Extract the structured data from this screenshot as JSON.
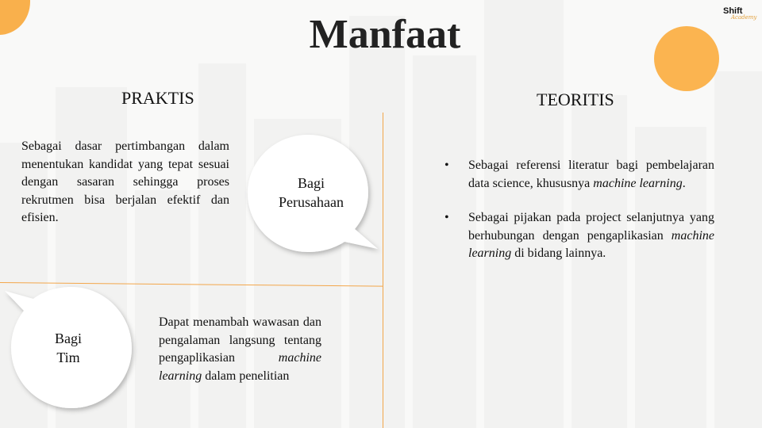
{
  "slide": {
    "title": "Manfaat",
    "logo": {
      "top": "Shift",
      "sub": "Academy"
    },
    "colors": {
      "accent": "#f9b04c",
      "line": "#f3a64a"
    }
  },
  "praktis": {
    "heading": "PRAKTIS",
    "perusahaan": {
      "bubble_line1": "Bagi",
      "bubble_line2": "Perusahaan",
      "text": "Sebagai dasar pertimbangan dalam menentukan kandidat yang tepat sesuai dengan sasaran sehingga proses rekrutmen bisa berjalan efektif dan efisien."
    },
    "tim": {
      "bubble_line1": "Bagi",
      "bubble_line2": "Tim",
      "text_part1": "Dapat menambah wawasan dan pengalaman langsung tentang pengaplikasian ",
      "text_em": "machine learning",
      "text_part2": " dalam penelitian"
    }
  },
  "teoritis": {
    "heading": "TEORITIS",
    "bullets": [
      {
        "symbol": "•",
        "text": "Sebagai referensi literatur bagi pembelajaran data science, khususnya ",
        "em": "machine learning",
        "after": "."
      },
      {
        "symbol": "•",
        "text": "Sebagai pijakan pada project selanjutnya yang berhubungan dengan pengaplikasian ",
        "em": "machine learning",
        "after": " di bidang lainnya."
      }
    ]
  }
}
